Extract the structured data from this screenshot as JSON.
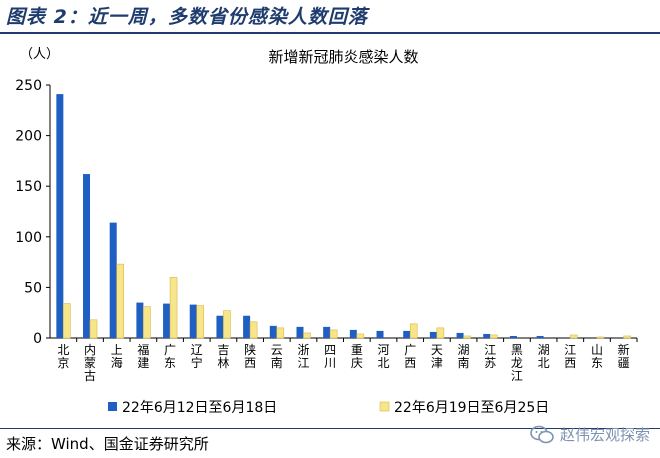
{
  "figure_title": "图表 2：近一周，多数省份感染人数回落",
  "source": "来源：Wind、国金证券研究所",
  "watermark": "赵伟宏观探索",
  "chart_data": {
    "type": "bar",
    "title": "新增新冠肺炎感染人数",
    "ylabel": "（人）",
    "ylim": [
      0,
      250
    ],
    "yticks": [
      0,
      50,
      100,
      150,
      200,
      250
    ],
    "grid": false,
    "legend_position": "bottom",
    "categories": [
      "北京",
      "内蒙古",
      "上海",
      "福建",
      "广东",
      "辽宁",
      "吉林",
      "陕西",
      "云南",
      "浙江",
      "四川",
      "重庆",
      "河北",
      "广西",
      "天津",
      "湖南",
      "江苏",
      "黑龙江",
      "湖北",
      "江西",
      "山东",
      "新疆"
    ],
    "series": [
      {
        "name": "22年6月12日至6月18日",
        "color": "#1f5fc4",
        "values": [
          241,
          162,
          114,
          35,
          34,
          33,
          22,
          22,
          12,
          11,
          11,
          8,
          7,
          7,
          6,
          5,
          4,
          2,
          2,
          0,
          0,
          0
        ]
      },
      {
        "name": "22年6月19日至6月25日",
        "color": "#f7e58a",
        "values": [
          34,
          18,
          73,
          31,
          60,
          32,
          27,
          16,
          10,
          5,
          8,
          4,
          0,
          14,
          10,
          2,
          3,
          0,
          0,
          3,
          1,
          2
        ]
      }
    ]
  }
}
